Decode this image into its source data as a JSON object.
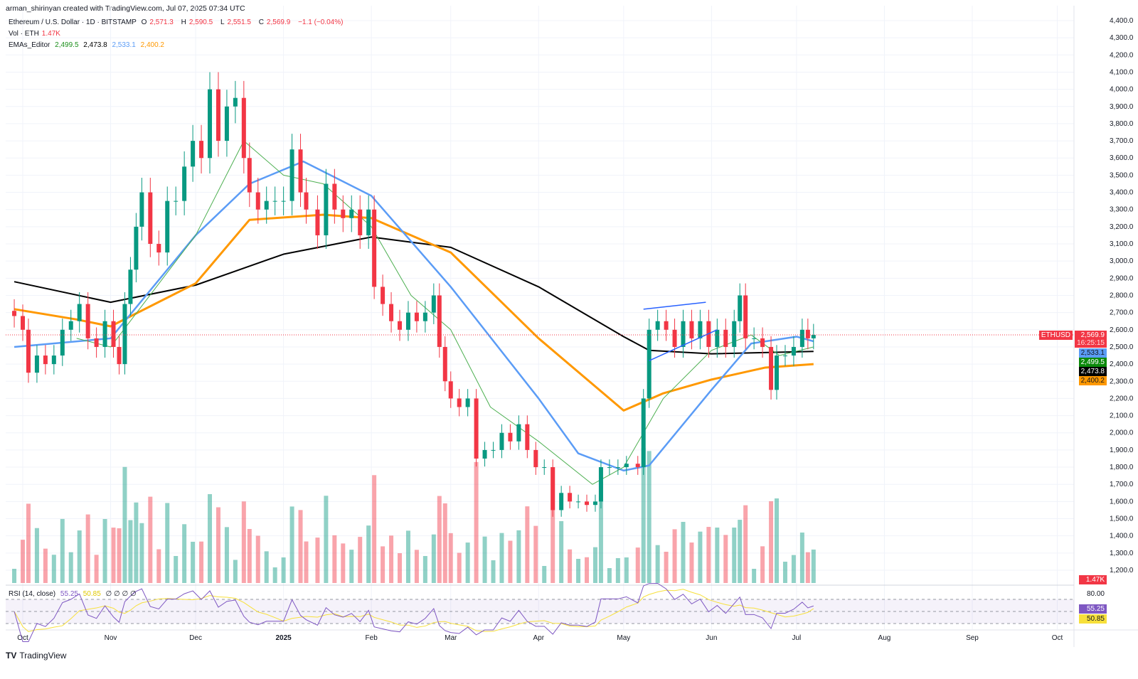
{
  "header": {
    "credit": "arman_shirinyan created with TradingView.com, Jul 07, 2025 07:34 UTC",
    "symbol": "Ethereum / U.S. Dollar · 1D · BITSTAMP",
    "o_label": "O",
    "o": "2,571.3",
    "h_label": "H",
    "h": "2,590.5",
    "l_label": "L",
    "l": "2,551.5",
    "c_label": "C",
    "c": "2,569.9",
    "change": "−1.1 (−0.04%)",
    "vol_label": "Vol · ETH",
    "vol": "1.47K",
    "ema_label": "EMAs_Editor",
    "ema_values": [
      "2,499.5",
      "2,473.8",
      "2,533.1",
      "2,400.2"
    ],
    "rsi_label": "RSI (14, close)",
    "rsi": "55.25",
    "rsi_ma": "50.85",
    "rsi_extra": "∅ ∅ ∅ ∅"
  },
  "price_tags": {
    "symbol": "ETHUSD",
    "last": "2,569.9",
    "countdown": "16:25:15",
    "ema_blue": "2,533.1",
    "ema_green": "2,499.5",
    "ema_black": "2,473.8",
    "ema_orange": "2,400.2",
    "volume": "1.47K",
    "rsi": "55.25",
    "rsi_ma": "50.85",
    "rsi_top": "80.00"
  },
  "footer": {
    "brand": "TradingView"
  },
  "colors": {
    "up": "#089981",
    "down": "#f23645",
    "ema_green": "#4caf50",
    "ema_blue": "#5b9cf6",
    "ema_orange": "#ff9800",
    "ema_black": "#000000",
    "rsi": "#7e57c2",
    "rsi_ma": "#f7e03b",
    "trendline": "#2962ff"
  },
  "chart_data": {
    "type": "candlestick",
    "ylim": [
      1200,
      4400
    ],
    "y_ticks": [
      "4,400.0",
      "4,300.0",
      "4,200.0",
      "4,100.0",
      "4,000.0",
      "3,900.0",
      "3,800.0",
      "3,700.0",
      "3,600.0",
      "3,500.0",
      "3,400.0",
      "3,300.0",
      "3,200.0",
      "3,100.0",
      "3,000.0",
      "2,900.0",
      "2,800.0",
      "2,700.0",
      "2,600.0",
      "2,500.0",
      "2,400.0",
      "2,300.0",
      "2,200.0",
      "2,100.0",
      "2,000.0",
      "1,900.0",
      "1,800.0",
      "1,700.0",
      "1,600.0",
      "1,500.0",
      "1,400.0",
      "1,300.0",
      "1,200.0"
    ],
    "x_ticks": [
      {
        "label": "Oct",
        "date": "2024-10-01"
      },
      {
        "label": "Nov",
        "date": "2024-11-01"
      },
      {
        "label": "Dec",
        "date": "2024-12-01"
      },
      {
        "label": "2025",
        "date": "2025-01-01"
      },
      {
        "label": "Feb",
        "date": "2025-02-01"
      },
      {
        "label": "Mar",
        "date": "2025-03-01"
      },
      {
        "label": "Apr",
        "date": "2025-04-01"
      },
      {
        "label": "May",
        "date": "2025-05-01"
      },
      {
        "label": "Jun",
        "date": "2025-06-01"
      },
      {
        "label": "Jul",
        "date": "2025-07-01"
      },
      {
        "label": "Aug",
        "date": "2025-08-01"
      },
      {
        "label": "Sep",
        "date": "2025-09-01"
      },
      {
        "label": "Oct",
        "date": "2025-10-01"
      }
    ],
    "closes": [
      [
        "2024-09-28",
        2680
      ],
      [
        "2024-10-01",
        2600
      ],
      [
        "2024-10-03",
        2350
      ],
      [
        "2024-10-06",
        2450
      ],
      [
        "2024-10-09",
        2400
      ],
      [
        "2024-10-12",
        2450
      ],
      [
        "2024-10-15",
        2600
      ],
      [
        "2024-10-18",
        2650
      ],
      [
        "2024-10-21",
        2750
      ],
      [
        "2024-10-24",
        2550
      ],
      [
        "2024-10-27",
        2500
      ],
      [
        "2024-10-30",
        2650
      ],
      [
        "2024-11-02",
        2500
      ],
      [
        "2024-11-04",
        2400
      ],
      [
        "2024-11-06",
        2750
      ],
      [
        "2024-11-08",
        2950
      ],
      [
        "2024-11-10",
        3200
      ],
      [
        "2024-11-12",
        3400
      ],
      [
        "2024-11-15",
        3100
      ],
      [
        "2024-11-18",
        3050
      ],
      [
        "2024-11-21",
        3350
      ],
      [
        "2024-11-24",
        3350
      ],
      [
        "2024-11-27",
        3550
      ],
      [
        "2024-11-30",
        3700
      ],
      [
        "2024-12-03",
        3600
      ],
      [
        "2024-12-06",
        4000
      ],
      [
        "2024-12-09",
        3700
      ],
      [
        "2024-12-12",
        3900
      ],
      [
        "2024-12-15",
        3950
      ],
      [
        "2024-12-18",
        3600
      ],
      [
        "2024-12-20",
        3400
      ],
      [
        "2024-12-23",
        3300
      ],
      [
        "2024-12-26",
        3350
      ],
      [
        "2024-12-29",
        3350
      ],
      [
        "2025-01-01",
        3350
      ],
      [
        "2025-01-04",
        3650
      ],
      [
        "2025-01-07",
        3400
      ],
      [
        "2025-01-09",
        3300
      ],
      [
        "2025-01-13",
        3150
      ],
      [
        "2025-01-16",
        3450
      ],
      [
        "2025-01-19",
        3300
      ],
      [
        "2025-01-22",
        3250
      ],
      [
        "2025-01-25",
        3300
      ],
      [
        "2025-01-28",
        3150
      ],
      [
        "2025-01-31",
        3300
      ],
      [
        "2025-02-02",
        2850
      ],
      [
        "2025-02-05",
        2750
      ],
      [
        "2025-02-08",
        2650
      ],
      [
        "2025-02-11",
        2600
      ],
      [
        "2025-02-14",
        2700
      ],
      [
        "2025-02-17",
        2650
      ],
      [
        "2025-02-20",
        2700
      ],
      [
        "2025-02-23",
        2800
      ],
      [
        "2025-02-25",
        2500
      ],
      [
        "2025-02-27",
        2300
      ],
      [
        "2025-03-01",
        2200
      ],
      [
        "2025-03-04",
        2150
      ],
      [
        "2025-03-07",
        2200
      ],
      [
        "2025-03-10",
        1850
      ],
      [
        "2025-03-13",
        1900
      ],
      [
        "2025-03-16",
        1900
      ],
      [
        "2025-03-19",
        2000
      ],
      [
        "2025-03-22",
        1950
      ],
      [
        "2025-03-25",
        2050
      ],
      [
        "2025-03-28",
        1900
      ],
      [
        "2025-03-31",
        1800
      ],
      [
        "2025-04-03",
        1800
      ],
      [
        "2025-04-06",
        1550
      ],
      [
        "2025-04-09",
        1650
      ],
      [
        "2025-04-12",
        1600
      ],
      [
        "2025-04-15",
        1600
      ],
      [
        "2025-04-18",
        1580
      ],
      [
        "2025-04-21",
        1600
      ],
      [
        "2025-04-23",
        1800
      ],
      [
        "2025-04-26",
        1800
      ],
      [
        "2025-04-29",
        1800
      ],
      [
        "2025-05-02",
        1820
      ],
      [
        "2025-05-06",
        1800
      ],
      [
        "2025-05-08",
        2200
      ],
      [
        "2025-05-10",
        2600
      ],
      [
        "2025-05-13",
        2650
      ],
      [
        "2025-05-16",
        2600
      ],
      [
        "2025-05-19",
        2500
      ],
      [
        "2025-05-22",
        2650
      ],
      [
        "2025-05-25",
        2550
      ],
      [
        "2025-05-28",
        2650
      ],
      [
        "2025-05-31",
        2500
      ],
      [
        "2025-06-03",
        2600
      ],
      [
        "2025-06-06",
        2500
      ],
      [
        "2025-06-09",
        2650
      ],
      [
        "2025-06-11",
        2800
      ],
      [
        "2025-06-13",
        2550
      ],
      [
        "2025-06-16",
        2550
      ],
      [
        "2025-06-19",
        2500
      ],
      [
        "2025-06-22",
        2250
      ],
      [
        "2025-06-24",
        2450
      ],
      [
        "2025-06-27",
        2450
      ],
      [
        "2025-06-30",
        2500
      ],
      [
        "2025-07-03",
        2600
      ],
      [
        "2025-07-05",
        2550
      ],
      [
        "2025-07-07",
        2570
      ]
    ],
    "emas": [
      {
        "color": "#000000",
        "width": 2,
        "points": [
          [
            "2024-09-28",
            2880
          ],
          [
            "2024-11-01",
            2760
          ],
          [
            "2024-12-01",
            2860
          ],
          [
            "2025-01-01",
            3040
          ],
          [
            "2025-02-01",
            3140
          ],
          [
            "2025-03-01",
            3080
          ],
          [
            "2025-04-01",
            2850
          ],
          [
            "2025-05-01",
            2560
          ],
          [
            "2025-05-10",
            2480
          ],
          [
            "2025-06-01",
            2460
          ],
          [
            "2025-07-07",
            2474
          ]
        ]
      },
      {
        "color": "#ff9800",
        "width": 3,
        "points": [
          [
            "2024-09-28",
            2720
          ],
          [
            "2024-10-20",
            2660
          ],
          [
            "2024-11-01",
            2620
          ],
          [
            "2024-12-01",
            2870
          ],
          [
            "2024-12-20",
            3240
          ],
          [
            "2025-01-15",
            3270
          ],
          [
            "2025-02-01",
            3250
          ],
          [
            "2025-03-01",
            3050
          ],
          [
            "2025-04-01",
            2550
          ],
          [
            "2025-05-01",
            2130
          ],
          [
            "2025-05-15",
            2230
          ],
          [
            "2025-06-01",
            2310
          ],
          [
            "2025-06-20",
            2380
          ],
          [
            "2025-07-07",
            2400
          ]
        ]
      },
      {
        "color": "#5b9cf6",
        "width": 2.5,
        "points": [
          [
            "2024-09-28",
            2500
          ],
          [
            "2024-11-01",
            2550
          ],
          [
            "2024-12-01",
            3150
          ],
          [
            "2024-12-20",
            3450
          ],
          [
            "2025-01-08",
            3580
          ],
          [
            "2025-02-01",
            3380
          ],
          [
            "2025-03-01",
            2850
          ],
          [
            "2025-04-01",
            2200
          ],
          [
            "2025-04-15",
            1880
          ],
          [
            "2025-05-01",
            1780
          ],
          [
            "2025-05-10",
            1810
          ],
          [
            "2025-06-01",
            2250
          ],
          [
            "2025-06-15",
            2520
          ],
          [
            "2025-07-01",
            2560
          ],
          [
            "2025-07-07",
            2533
          ]
        ]
      },
      {
        "color": "#4caf50",
        "width": 1,
        "points": [
          [
            "2024-10-20",
            2550
          ],
          [
            "2024-11-01",
            2500
          ],
          [
            "2024-12-01",
            3150
          ],
          [
            "2024-12-18",
            3700
          ],
          [
            "2025-01-01",
            3500
          ],
          [
            "2025-01-15",
            3450
          ],
          [
            "2025-02-01",
            3200
          ],
          [
            "2025-02-15",
            2800
          ],
          [
            "2025-03-01",
            2600
          ],
          [
            "2025-03-15",
            2150
          ],
          [
            "2025-04-01",
            1950
          ],
          [
            "2025-04-20",
            1700
          ],
          [
            "2025-05-01",
            1800
          ],
          [
            "2025-05-15",
            2200
          ],
          [
            "2025-06-01",
            2480
          ],
          [
            "2025-06-15",
            2570
          ],
          [
            "2025-06-25",
            2450
          ],
          [
            "2025-07-07",
            2500
          ]
        ]
      }
    ],
    "trendlines": [
      {
        "from": [
          "2025-05-08",
          2720
        ],
        "to": [
          "2025-05-30",
          2760
        ]
      },
      {
        "from": [
          "2025-05-10",
          2420
        ],
        "to": [
          "2025-06-03",
          2600
        ]
      }
    ],
    "rsi": {
      "period": 14,
      "levels": [
        70,
        50,
        30
      ],
      "last": 55.25,
      "ma_last": 50.85
    }
  }
}
